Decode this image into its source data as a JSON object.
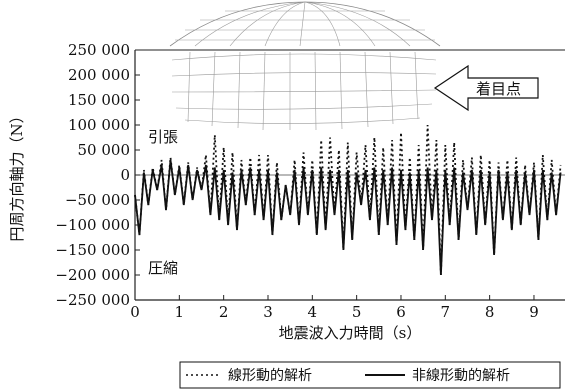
{
  "chart_data": {
    "type": "line",
    "xlabel": "地震波入力時間（s）",
    "ylabel": "円周方向軸力（N）",
    "xlim": [
      0,
      9.7
    ],
    "ylim": [
      -250000,
      250000
    ],
    "x_ticks": [
      0,
      1,
      2,
      3,
      4,
      5,
      6,
      7,
      8,
      9
    ],
    "y_ticks": [
      250000,
      200000,
      150000,
      100000,
      50000,
      0,
      -50000,
      -100000,
      -150000,
      -200000,
      -250000
    ],
    "x_tick_labels": [
      "0",
      "1",
      "2",
      "3",
      "4",
      "5",
      "6",
      "7",
      "8",
      "9"
    ],
    "y_tick_labels": [
      "250 000",
      "200 000",
      "150 000",
      "100 000",
      "50 000",
      "0",
      "−50 000",
      "−100 000",
      "−150 000",
      "−200 000",
      "−250 000"
    ],
    "annotations": {
      "tension": "引張",
      "compression": "圧縮",
      "focus_point": "着目点"
    },
    "series": [
      {
        "name": "線形動的解析",
        "style": "dotted",
        "x": [
          0.0,
          0.1,
          0.2,
          0.3,
          0.4,
          0.5,
          0.6,
          0.7,
          0.8,
          0.9,
          1.0,
          1.1,
          1.2,
          1.3,
          1.4,
          1.5,
          1.6,
          1.7,
          1.8,
          1.9,
          2.0,
          2.1,
          2.2,
          2.3,
          2.4,
          2.5,
          2.6,
          2.7,
          2.8,
          2.9,
          3.0,
          3.1,
          3.2,
          3.3,
          3.4,
          3.5,
          3.6,
          3.7,
          3.8,
          3.9,
          4.0,
          4.1,
          4.2,
          4.3,
          4.4,
          4.5,
          4.6,
          4.7,
          4.8,
          4.9,
          5.0,
          5.1,
          5.2,
          5.3,
          5.4,
          5.5,
          5.6,
          5.7,
          5.8,
          5.9,
          6.0,
          6.1,
          6.2,
          6.3,
          6.4,
          6.5,
          6.6,
          6.7,
          6.8,
          6.9,
          7.0,
          7.1,
          7.2,
          7.3,
          7.4,
          7.5,
          7.6,
          7.7,
          7.8,
          7.9,
          8.0,
          8.1,
          8.2,
          8.3,
          8.4,
          8.5,
          8.6,
          8.7,
          8.8,
          8.9,
          9.0,
          9.1,
          9.2,
          9.3,
          9.4,
          9.5,
          9.6
        ],
        "values": [
          -40000,
          -120000,
          10000,
          -60000,
          15000,
          -30000,
          30000,
          -70000,
          35000,
          -40000,
          20000,
          -60000,
          25000,
          -50000,
          15000,
          -30000,
          40000,
          -80000,
          80000,
          -90000,
          55000,
          -100000,
          45000,
          -110000,
          30000,
          -60000,
          35000,
          -80000,
          40000,
          -90000,
          40000,
          -120000,
          25000,
          -90000,
          -20000,
          -80000,
          30000,
          -100000,
          45000,
          -80000,
          30000,
          -120000,
          70000,
          -110000,
          75000,
          -80000,
          50000,
          -150000,
          65000,
          -130000,
          45000,
          -60000,
          60000,
          -90000,
          75000,
          -120000,
          55000,
          -100000,
          70000,
          -140000,
          85000,
          -110000,
          35000,
          -130000,
          60000,
          -150000,
          100000,
          -90000,
          70000,
          -200000,
          60000,
          -100000,
          65000,
          -130000,
          30000,
          -70000,
          35000,
          -120000,
          40000,
          -100000,
          30000,
          -160000,
          25000,
          -90000,
          30000,
          -110000,
          35000,
          -100000,
          20000,
          -80000,
          25000,
          -130000,
          40000,
          -90000,
          30000,
          -80000,
          20000
        ]
      },
      {
        "name": "非線形動的解析",
        "style": "solid",
        "x": [
          0.0,
          0.1,
          0.2,
          0.3,
          0.4,
          0.5,
          0.6,
          0.7,
          0.8,
          0.9,
          1.0,
          1.1,
          1.2,
          1.3,
          1.4,
          1.5,
          1.6,
          1.7,
          1.8,
          1.9,
          2.0,
          2.1,
          2.2,
          2.3,
          2.4,
          2.5,
          2.6,
          2.7,
          2.8,
          2.9,
          3.0,
          3.1,
          3.2,
          3.3,
          3.4,
          3.5,
          3.6,
          3.7,
          3.8,
          3.9,
          4.0,
          4.1,
          4.2,
          4.3,
          4.4,
          4.5,
          4.6,
          4.7,
          4.8,
          4.9,
          5.0,
          5.1,
          5.2,
          5.3,
          5.4,
          5.5,
          5.6,
          5.7,
          5.8,
          5.9,
          6.0,
          6.1,
          6.2,
          6.3,
          6.4,
          6.5,
          6.6,
          6.7,
          6.8,
          6.9,
          7.0,
          7.1,
          7.2,
          7.3,
          7.4,
          7.5,
          7.6,
          7.7,
          7.8,
          7.9,
          8.0,
          8.1,
          8.2,
          8.3,
          8.4,
          8.5,
          8.6,
          8.7,
          8.8,
          8.9,
          9.0,
          9.1,
          9.2,
          9.3,
          9.4,
          9.5,
          9.6
        ],
        "values": [
          -40000,
          -120000,
          5000,
          -60000,
          10000,
          -30000,
          20000,
          -70000,
          30000,
          -40000,
          15000,
          -60000,
          20000,
          -50000,
          10000,
          -30000,
          20000,
          -80000,
          15000,
          -90000,
          10000,
          -100000,
          5000,
          -110000,
          10000,
          -60000,
          15000,
          -80000,
          10000,
          -90000,
          10000,
          -120000,
          5000,
          -90000,
          -20000,
          -80000,
          10000,
          -100000,
          15000,
          -80000,
          10000,
          -120000,
          15000,
          -110000,
          10000,
          -80000,
          10000,
          -150000,
          10000,
          -130000,
          5000,
          -60000,
          10000,
          -90000,
          15000,
          -120000,
          10000,
          -100000,
          15000,
          -140000,
          10000,
          -110000,
          5000,
          -130000,
          10000,
          -150000,
          15000,
          -90000,
          10000,
          -200000,
          10000,
          -100000,
          15000,
          -130000,
          5000,
          -70000,
          10000,
          -120000,
          10000,
          -100000,
          5000,
          -160000,
          10000,
          -90000,
          5000,
          -110000,
          10000,
          -100000,
          5000,
          -80000,
          10000,
          -130000,
          10000,
          -90000,
          5000,
          -80000,
          5000
        ]
      }
    ]
  }
}
